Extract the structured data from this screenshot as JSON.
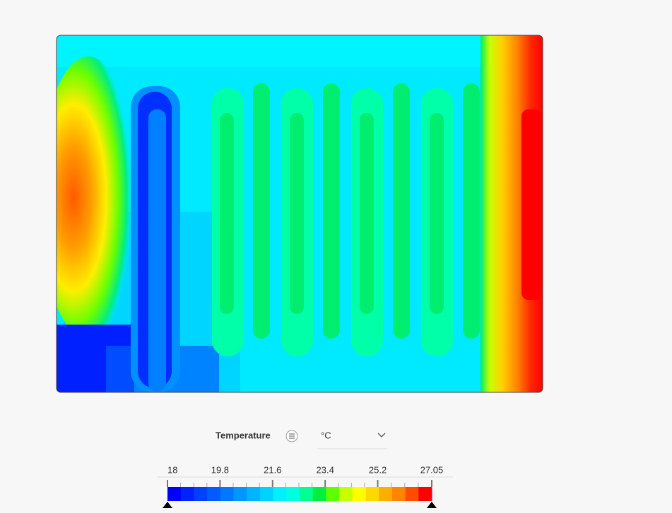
{
  "legend": {
    "title": "Temperature",
    "unit": "°C",
    "ticks": [
      18,
      19.8,
      21.6,
      23.4,
      25.2,
      27.05
    ],
    "colors": [
      "#0000ff",
      "#0022ff",
      "#0040ff",
      "#005cff",
      "#0078ff",
      "#0096ff",
      "#00b4ff",
      "#00d2ff",
      "#00f0ff",
      "#00ffe0",
      "#00ff90",
      "#00ee40",
      "#60ff00",
      "#c8ff00",
      "#ffff00",
      "#ffd800",
      "#ffae00",
      "#ff8400",
      "#ff4c00",
      "#ff0000"
    ]
  }
}
